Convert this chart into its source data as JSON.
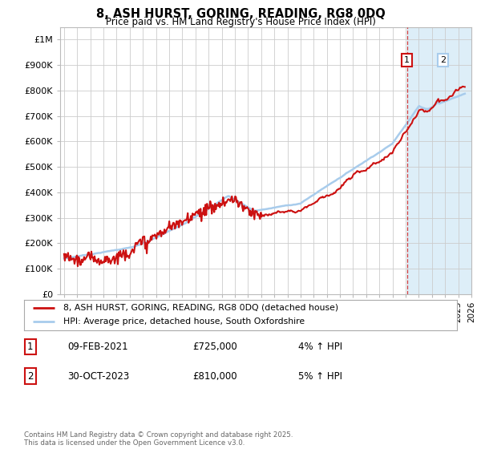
{
  "title": "8, ASH HURST, GORING, READING, RG8 0DQ",
  "subtitle": "Price paid vs. HM Land Registry's House Price Index (HPI)",
  "ylabel_ticks": [
    "£0",
    "£100K",
    "£200K",
    "£300K",
    "£400K",
    "£500K",
    "£600K",
    "£700K",
    "£800K",
    "£900K",
    "£1M"
  ],
  "ytick_values": [
    0,
    100000,
    200000,
    300000,
    400000,
    500000,
    600000,
    700000,
    800000,
    900000,
    1000000
  ],
  "ylim": [
    0,
    1050000
  ],
  "xlim_start": 1994.7,
  "xlim_end": 2026.0,
  "hpi_color": "#a8ccec",
  "price_color": "#cc1111",
  "shaded_color": "#ddeef8",
  "t1_x": 2021.1,
  "t2_x": 2023.83,
  "marker1_y": 920000,
  "marker2_y": 920000,
  "legend1_label": "8, ASH HURST, GORING, READING, RG8 0DQ (detached house)",
  "legend2_label": "HPI: Average price, detached house, South Oxfordshire",
  "note1_num": "1",
  "note1_date": "09-FEB-2021",
  "note1_price": "£725,000",
  "note1_hpi": "4% ↑ HPI",
  "note2_num": "2",
  "note2_date": "30-OCT-2023",
  "note2_price": "£810,000",
  "note2_hpi": "5% ↑ HPI",
  "footer": "Contains HM Land Registry data © Crown copyright and database right 2025.\nThis data is licensed under the Open Government Licence v3.0.",
  "grid_color": "#cccccc",
  "spine_color": "#bbbbbb"
}
